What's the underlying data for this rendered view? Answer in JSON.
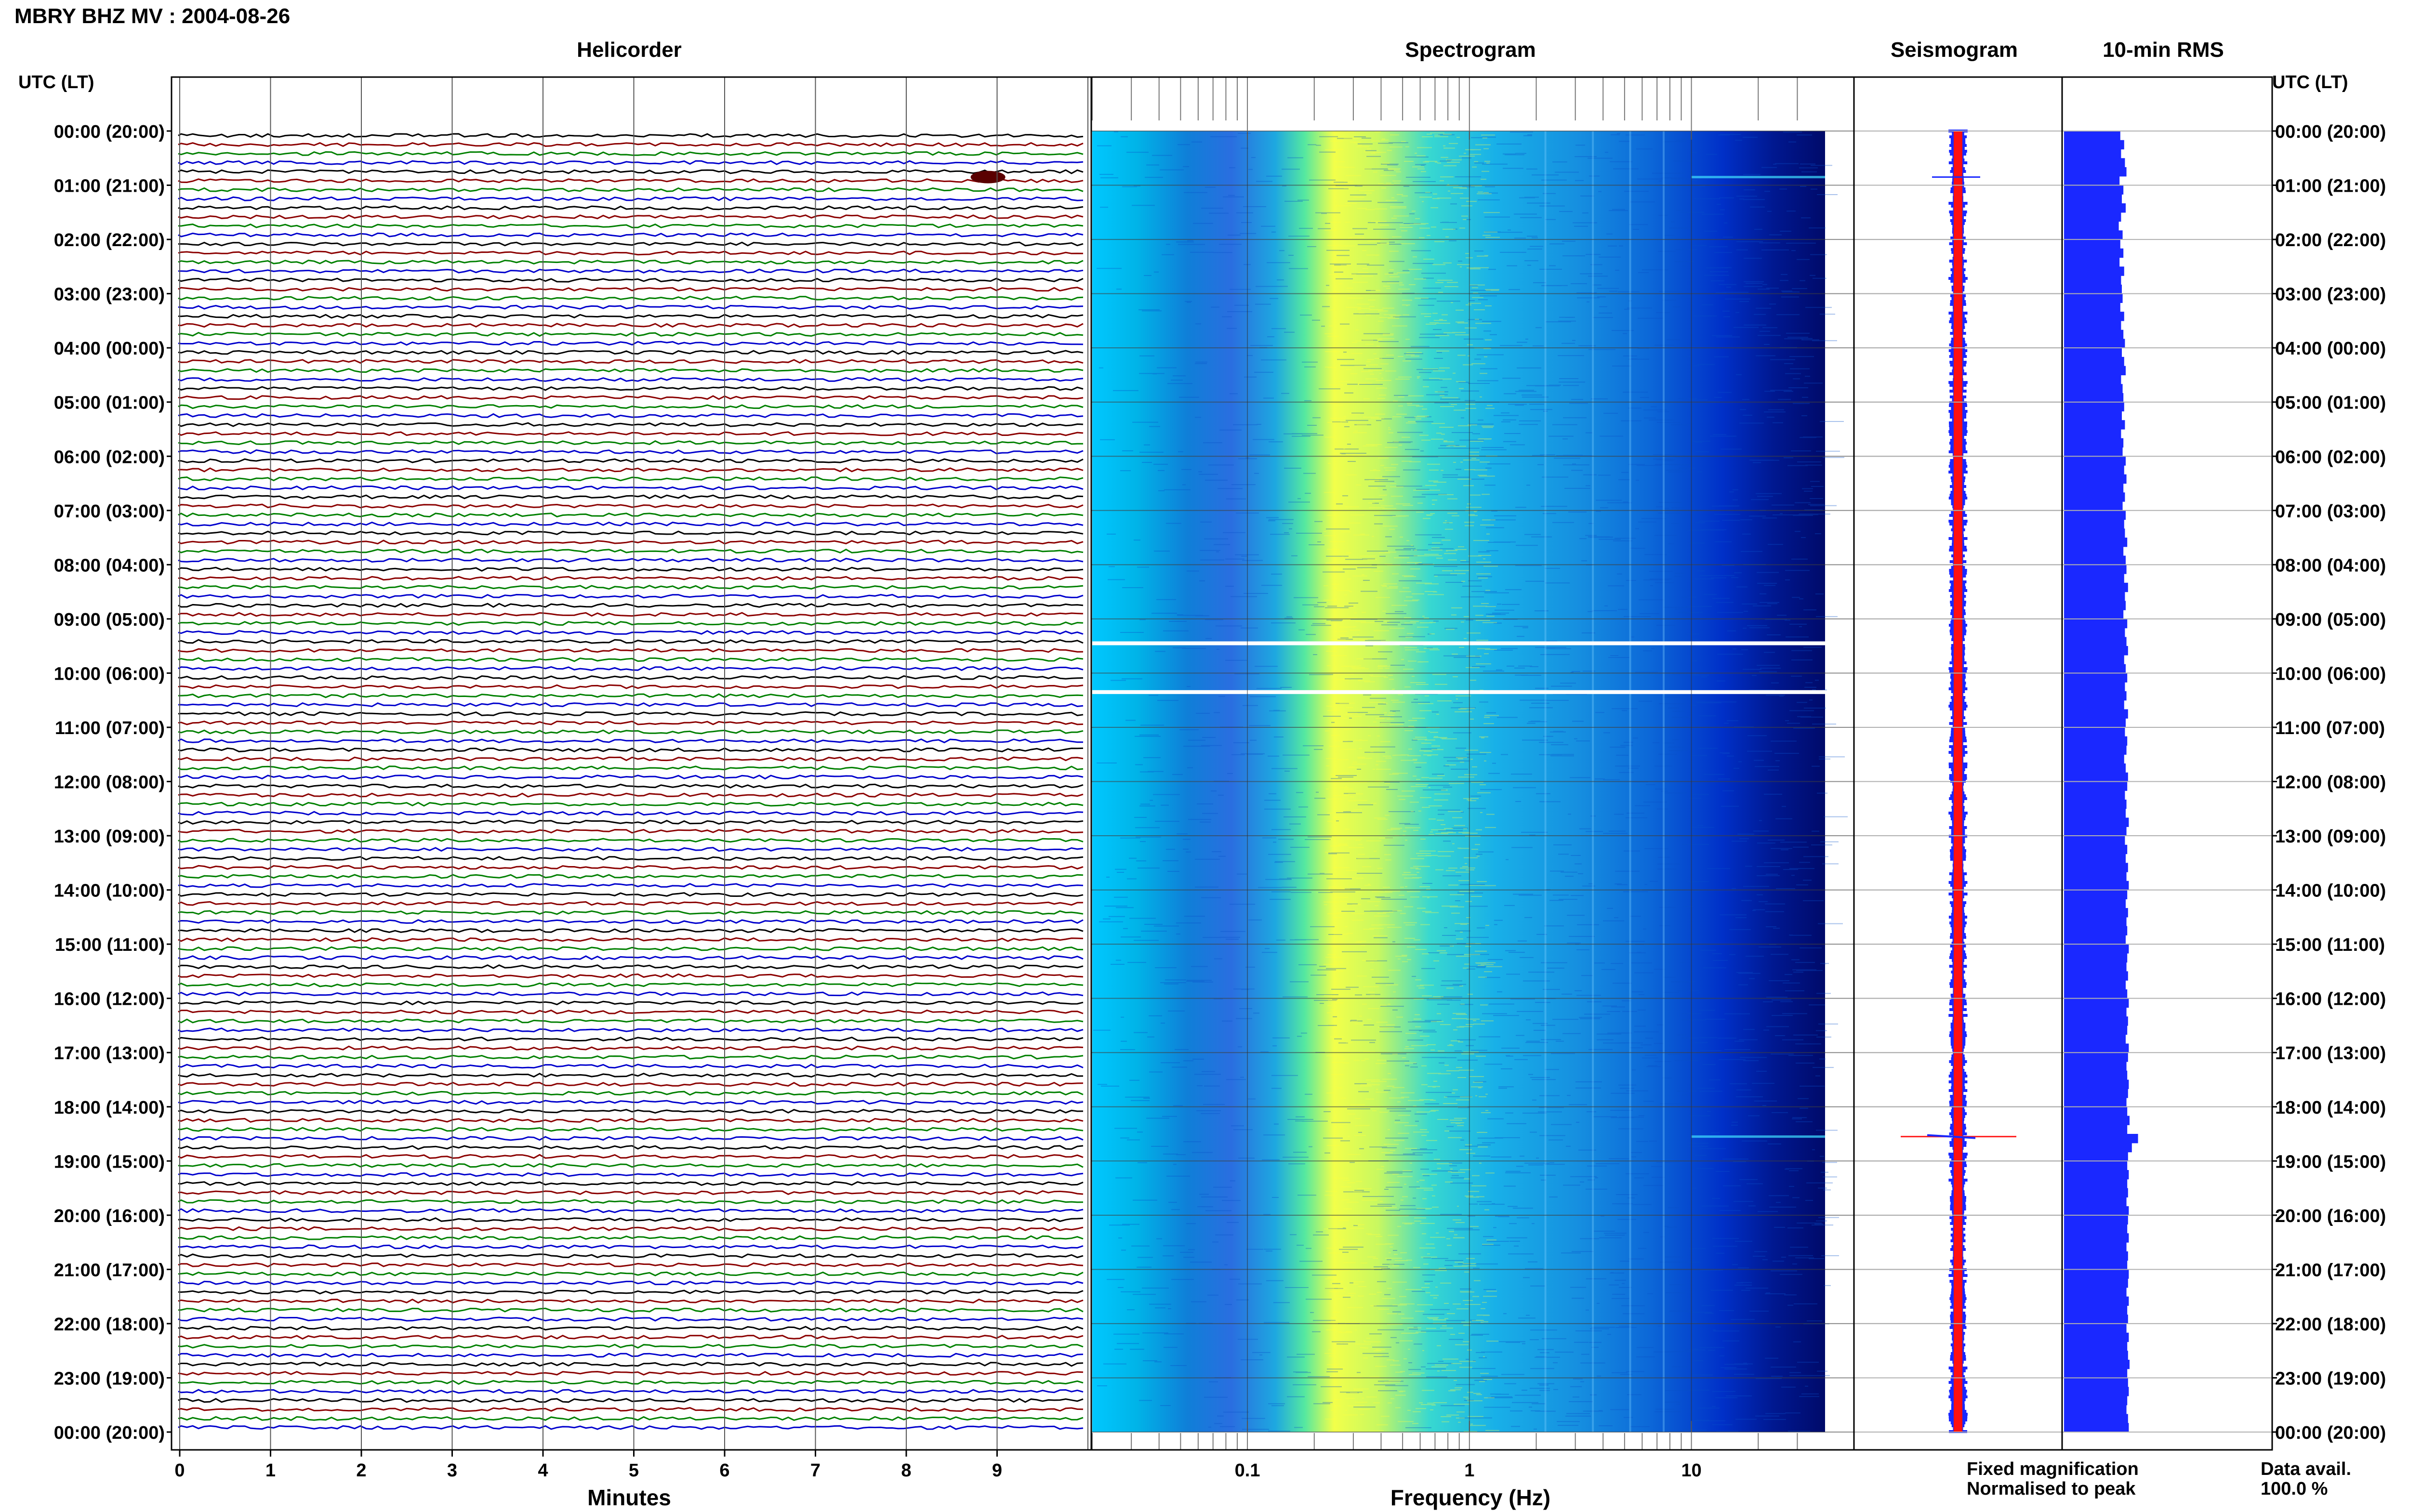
{
  "title": "MBRY BHZ MV : 2004-08-26",
  "panels": {
    "helicorder": "Helicorder",
    "spectrogram": "Spectrogram",
    "seismogram": "Seismogram",
    "rms": "10-min RMS"
  },
  "time_axis_label": "UTC (LT)",
  "hour_labels": [
    "00:00 (20:00)",
    "01:00 (21:00)",
    "02:00 (22:00)",
    "03:00 (23:00)",
    "04:00 (00:00)",
    "05:00 (01:00)",
    "06:00 (02:00)",
    "07:00 (03:00)",
    "08:00 (04:00)",
    "09:00 (05:00)",
    "10:00 (06:00)",
    "11:00 (07:00)",
    "12:00 (08:00)",
    "13:00 (09:00)",
    "14:00 (10:00)",
    "15:00 (11:00)",
    "16:00 (12:00)",
    "17:00 (13:00)",
    "18:00 (14:00)",
    "19:00 (15:00)",
    "20:00 (16:00)",
    "21:00 (17:00)",
    "22:00 (18:00)",
    "23:00 (19:00)",
    "00:00 (20:00)"
  ],
  "helicorder_axis": {
    "label": "Minutes",
    "ticks": [
      "0",
      "1",
      "2",
      "3",
      "4",
      "5",
      "6",
      "7",
      "8",
      "9"
    ],
    "trace_colors": [
      "#000000",
      "#8b0000",
      "#008000",
      "#0000cd"
    ]
  },
  "spectrogram_axis": {
    "label": "Frequency (Hz)",
    "ticks": [
      "0.1",
      "1",
      "10"
    ],
    "scale": "log",
    "xlim": [
      0.02,
      40
    ]
  },
  "legend": {
    "fixed": "Fixed magnification",
    "fixed_color": "#0000ff",
    "normalised": "Normalised to peak",
    "normalised_color": "#ff0000"
  },
  "data_availability": {
    "label": "Data avail.",
    "value": "100.0 %"
  },
  "chart_data": {
    "type": "heatmap",
    "rows_per_hour": 6,
    "hours": 24,
    "data_gaps_hours": [
      9.45,
      10.35
    ],
    "event_hours": [
      0.85,
      18.55
    ],
    "spectral_peak_hz": 0.4,
    "rms_values": [
      0.73,
      0.78,
      0.74,
      0.79,
      0.81,
      0.72,
      0.77,
      0.75,
      0.8,
      0.74,
      0.71,
      0.76,
      0.73,
      0.77,
      0.72,
      0.78,
      0.74,
      0.75,
      0.76,
      0.73,
      0.78,
      0.74,
      0.77,
      0.79,
      0.75,
      0.78,
      0.8,
      0.74,
      0.76,
      0.77,
      0.78,
      0.75,
      0.79,
      0.74,
      0.77,
      0.76,
      0.8,
      0.78,
      0.81,
      0.77,
      0.79,
      0.76,
      0.8,
      0.78,
      0.79,
      0.82,
      0.77,
      0.8,
      0.81,
      0.78,
      0.83,
      0.79,
      0.8,
      0.77,
      0.82,
      0.79,
      0.81,
      0.83,
      0.78,
      0.8,
      0.82,
      0.79,
      0.81,
      0.78,
      0.83,
      0.8,
      0.79,
      0.82,
      0.81,
      0.78,
      0.8,
      0.83,
      0.82,
      0.79,
      0.81,
      0.8,
      0.84,
      0.81,
      0.79,
      0.82,
      0.8,
      0.83,
      0.81,
      0.84,
      0.82,
      0.8,
      0.83,
      0.81,
      0.82,
      0.8,
      0.84,
      0.82,
      0.81,
      0.83,
      0.8,
      0.82,
      0.84,
      0.81,
      0.83,
      0.82,
      0.8,
      0.84,
      0.83,
      0.81,
      0.82,
      0.84,
      0.83,
      0.81,
      0.82,
      0.85,
      0.82,
      0.96,
      0.88,
      0.83,
      0.82,
      0.84,
      0.82,
      0.83,
      0.81,
      0.84,
      0.83,
      0.82,
      0.84,
      0.81,
      0.83,
      0.82,
      0.84,
      0.83,
      0.81,
      0.84,
      0.82,
      0.83,
      0.81,
      0.84,
      0.82,
      0.83,
      0.85,
      0.82,
      0.83,
      0.84,
      0.82,
      0.81,
      0.83,
      0.84
    ]
  }
}
